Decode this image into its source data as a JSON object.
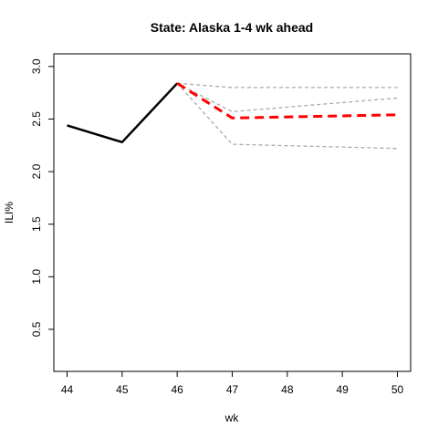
{
  "chart_data": {
    "type": "line",
    "title": "State: Alaska 1-4 wk ahead",
    "xlabel": "wk",
    "ylabel": "ILI%",
    "xlim": [
      44,
      50
    ],
    "ylim": [
      0.1,
      3.12
    ],
    "x_ticks": [
      "44",
      "45",
      "46",
      "47",
      "48",
      "49",
      "50"
    ],
    "y_ticks": [
      "0.5",
      "1.0",
      "1.5",
      "2.0",
      "2.5",
      "3.0"
    ],
    "grid": false,
    "legend": "none",
    "series": [
      {
        "role": "observed",
        "color": "#000000",
        "style": "solid",
        "points": [
          [
            44,
            2.44
          ],
          [
            45,
            2.28
          ],
          [
            46,
            2.84
          ]
        ]
      },
      {
        "role": "forecast",
        "color": "#ff0000",
        "style": "dashed",
        "points": [
          [
            46,
            2.84
          ],
          [
            47,
            2.51
          ],
          [
            50,
            2.54
          ]
        ]
      },
      {
        "role": "interval",
        "color": "#aaaaaa",
        "style": "dashed",
        "points": [
          [
            46,
            2.84
          ],
          [
            47,
            2.8
          ],
          [
            50,
            2.8
          ]
        ]
      },
      {
        "role": "interval",
        "color": "#aaaaaa",
        "style": "dashed",
        "points": [
          [
            46,
            2.84
          ],
          [
            47,
            2.57
          ],
          [
            50,
            2.7
          ]
        ]
      },
      {
        "role": "interval",
        "color": "#aaaaaa",
        "style": "dashed",
        "points": [
          [
            46,
            2.84
          ],
          [
            47,
            2.26
          ],
          [
            50,
            2.22
          ]
        ]
      }
    ]
  }
}
